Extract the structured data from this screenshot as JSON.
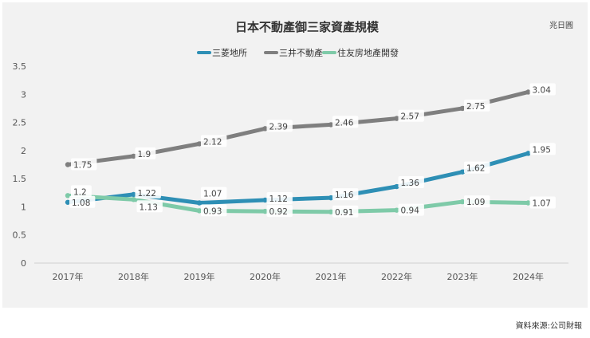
{
  "chart_data": {
    "type": "line",
    "title": "日本不動產御三家資產規模",
    "unit": "兆日圓",
    "categories": [
      "2017年",
      "2018年",
      "2019年",
      "2020年",
      "2021年",
      "2022年",
      "2023年",
      "2024年"
    ],
    "ylim": [
      0,
      3.5
    ],
    "yticks": [
      "0",
      "0.5",
      "1",
      "1.5",
      "2",
      "2.5",
      "3",
      "3.5"
    ],
    "grid": false,
    "legend_position": "top-center",
    "series": [
      {
        "name": "三菱地所",
        "color": "#2e8fb5",
        "values": [
          1.08,
          1.22,
          1.07,
          1.12,
          1.16,
          1.36,
          1.62,
          1.95
        ],
        "labels": [
          "1.08",
          "1.22",
          "1.07",
          "1.12",
          "1.16",
          "1.36",
          "1.62",
          "1.95"
        ]
      },
      {
        "name": "三井不動產",
        "color": "#7f7f7f",
        "values": [
          1.75,
          1.9,
          2.12,
          2.39,
          2.46,
          2.57,
          2.75,
          3.04
        ],
        "labels": [
          "1.75",
          "1.9",
          "2.12",
          "2.39",
          "2.46",
          "2.57",
          "2.75",
          "3.04"
        ]
      },
      {
        "name": "住友房地產開發",
        "color": "#7ecaa8",
        "values": [
          1.2,
          1.13,
          0.93,
          0.92,
          0.91,
          0.94,
          1.09,
          1.07
        ],
        "labels": [
          "1.2",
          "1.13",
          "0.93",
          "0.92",
          "0.91",
          "0.94",
          "1.09",
          "1.07"
        ]
      }
    ]
  },
  "source": "資料來源:公司財報"
}
